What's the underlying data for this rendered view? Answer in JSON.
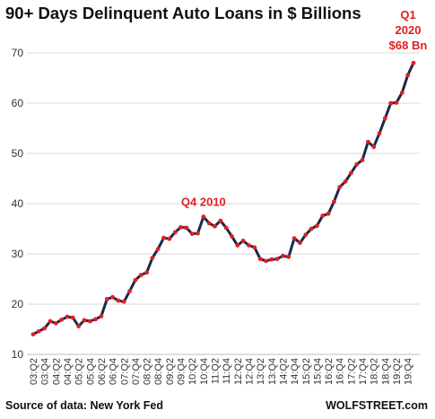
{
  "chart_data": {
    "type": "line",
    "title": "90+ Days Delinquent Auto Loans in $ Billions",
    "xlabel": "",
    "ylabel": "",
    "ylim": [
      10,
      70
    ],
    "yticks": [
      10,
      20,
      30,
      40,
      50,
      60,
      70
    ],
    "grid": true,
    "x_tick_labels": [
      "03:Q2",
      "03:Q4",
      "04:Q2",
      "04:Q4",
      "05:Q2",
      "05:Q4",
      "06:Q2",
      "06:Q4",
      "07:Q2",
      "07:Q4",
      "08:Q2",
      "08:Q4",
      "09:Q2",
      "09:Q4",
      "10:Q2",
      "10:Q4",
      "11:Q2",
      "11:Q4",
      "12:Q2",
      "12:Q4",
      "13:Q2",
      "13:Q4",
      "14:Q2",
      "14:Q4",
      "15:Q2",
      "15:Q4",
      "16:Q2",
      "16:Q4",
      "17:Q2",
      "17:Q4",
      "18:Q2",
      "18:Q4",
      "19:Q2",
      "19:Q4"
    ],
    "series": [
      {
        "values": [
          14.0,
          14.6,
          15.2,
          16.6,
          16.2,
          16.9,
          17.5,
          17.3,
          15.6,
          16.8,
          16.6,
          17.0,
          17.6,
          21.0,
          21.4,
          20.7,
          20.5,
          22.6,
          24.8,
          25.8,
          26.3,
          29.2,
          31.0,
          33.2,
          33.0,
          34.3,
          35.3,
          35.2,
          34.0,
          34.1,
          37.4,
          36.1,
          35.5,
          36.6,
          35.2,
          33.5,
          31.7,
          32.6,
          31.7,
          31.3,
          29.0,
          28.6,
          28.9,
          29.0,
          29.6,
          29.4,
          33.1,
          32.2,
          33.8,
          35.0,
          35.6,
          37.6,
          38.0,
          40.4,
          43.3,
          44.4,
          46.1,
          47.8,
          48.7,
          52.3,
          51.3,
          54.0,
          57.0,
          60.0,
          60.1,
          62.1,
          65.6,
          68.0
        ],
        "color": "#1a2a4a",
        "marker_color": "#e02020"
      }
    ],
    "annotations": [
      {
        "text": "Q4 2010",
        "color": "#e02020"
      },
      {
        "text": "Q1",
        "color": "#e02020"
      },
      {
        "text": "2020",
        "color": "#e02020"
      },
      {
        "text": "$68 Bn",
        "color": "#e02020"
      }
    ]
  },
  "footer": {
    "source": "Source of data: New York Fed",
    "brand": "WOLFSTREET.com"
  }
}
